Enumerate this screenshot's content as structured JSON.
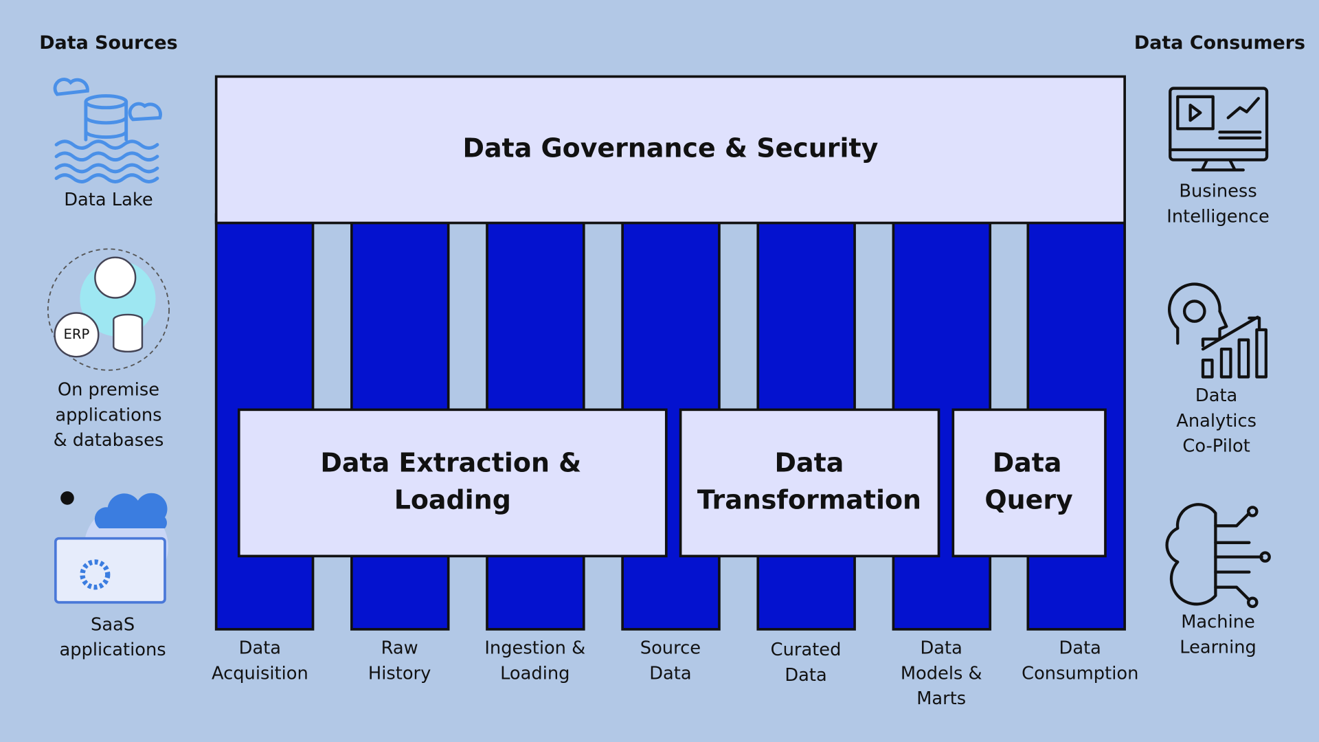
{
  "sources": {
    "title": "Data Sources",
    "items": [
      [
        "Data Lake"
      ],
      [
        "On premise",
        "applications",
        "& databases"
      ],
      [
        "SaaS",
        "applications"
      ]
    ]
  },
  "consumers": {
    "title": "Data Consumers",
    "items": [
      [
        "Business",
        "Intelligence"
      ],
      [
        "Data",
        "Analytics",
        "Co-Pilot"
      ],
      [
        "Machine",
        "Learning"
      ]
    ]
  },
  "governance": "Data Governance & Security",
  "processes": [
    {
      "lines": [
        "Data Extraction &",
        "Loading"
      ]
    },
    {
      "lines": [
        "Data",
        "Transformation"
      ]
    },
    {
      "lines": [
        "Data",
        "Query"
      ]
    }
  ],
  "layers": [
    [
      "Data",
      "Acquisition"
    ],
    [
      "Raw",
      "History"
    ],
    [
      "Ingestion &",
      "Loading"
    ],
    [
      "Source",
      "Data"
    ],
    [
      "Curated",
      "Data"
    ],
    [
      "Data",
      "Models &",
      "Marts"
    ],
    [
      "Data",
      "Consumption"
    ]
  ]
}
